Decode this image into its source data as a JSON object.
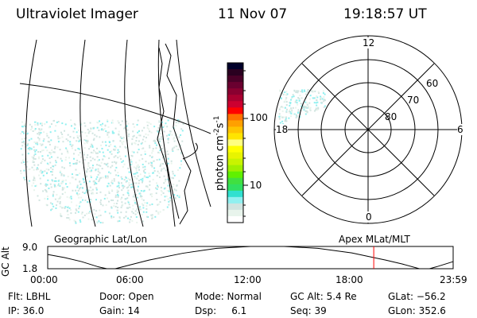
{
  "header": {
    "instrument": "Ultraviolet Imager",
    "date": "11 Nov 07",
    "time": "19:18:57 UT"
  },
  "colorbar": {
    "label": "photon cm",
    "exp1": "-2",
    "s": "s",
    "exp2": "-1",
    "ticks": [
      "100",
      "10"
    ],
    "colors": [
      "#00002a",
      "#2a0020",
      "#4a0028",
      "#6a0030",
      "#8a0030",
      "#aa0030",
      "#cc0030",
      "#ff0000",
      "#ff7000",
      "#ffa000",
      "#ffc400",
      "#ffe400",
      "#ffff80",
      "#ffff00",
      "#e8f400",
      "#c8f400",
      "#a0f000",
      "#60f000",
      "#40e040",
      "#30e060",
      "#30e0d0",
      "#90f0f0",
      "#d0e4e0",
      "#e8f4ec",
      "#ffffff"
    ]
  },
  "polar": {
    "labels": {
      "top": "12",
      "bottom": "0",
      "left": "18",
      "right": "6"
    },
    "lat_labels": [
      "60",
      "70",
      "80"
    ]
  },
  "map_labels": {
    "left": "Geographic Lat/Lon",
    "right": "Apex MLat/MLT"
  },
  "chart_data": {
    "type": "line",
    "title": "",
    "ylabel": "GC Alt",
    "yticks": [
      "9.0",
      "1.8"
    ],
    "ylim": [
      1.8,
      9.0
    ],
    "xticks": [
      "00:00",
      "06:00",
      "12:00",
      "18:00",
      "23:59"
    ],
    "xlim": [
      0,
      24
    ],
    "x": [
      0,
      1,
      2,
      3,
      3.5,
      4,
      6,
      8,
      10,
      12,
      13,
      14,
      16,
      18,
      19.3,
      20,
      21,
      22,
      22.6,
      23,
      24
    ],
    "y": [
      6.4,
      5.4,
      4.1,
      2.4,
      1.8,
      1.8,
      4.6,
      6.8,
      8.4,
      9.0,
      9.0,
      9.0,
      8.4,
      6.9,
      5.4,
      4.6,
      3.3,
      1.8,
      1.8,
      2.4,
      4.1
    ],
    "marker_time": 19.3,
    "marker_color": "#ff0000"
  },
  "status": [
    [
      "Flt: LBHL",
      "IP: 36.0"
    ],
    [
      "Door: Open",
      "Gain: 14"
    ],
    [
      "Mode: Normal",
      "Dsp:     6.1"
    ],
    [
      "GC Alt: 5.4 Re",
      "Seq: 39"
    ],
    [
      "GLat: −56.2",
      "GLon: 352.6"
    ]
  ]
}
